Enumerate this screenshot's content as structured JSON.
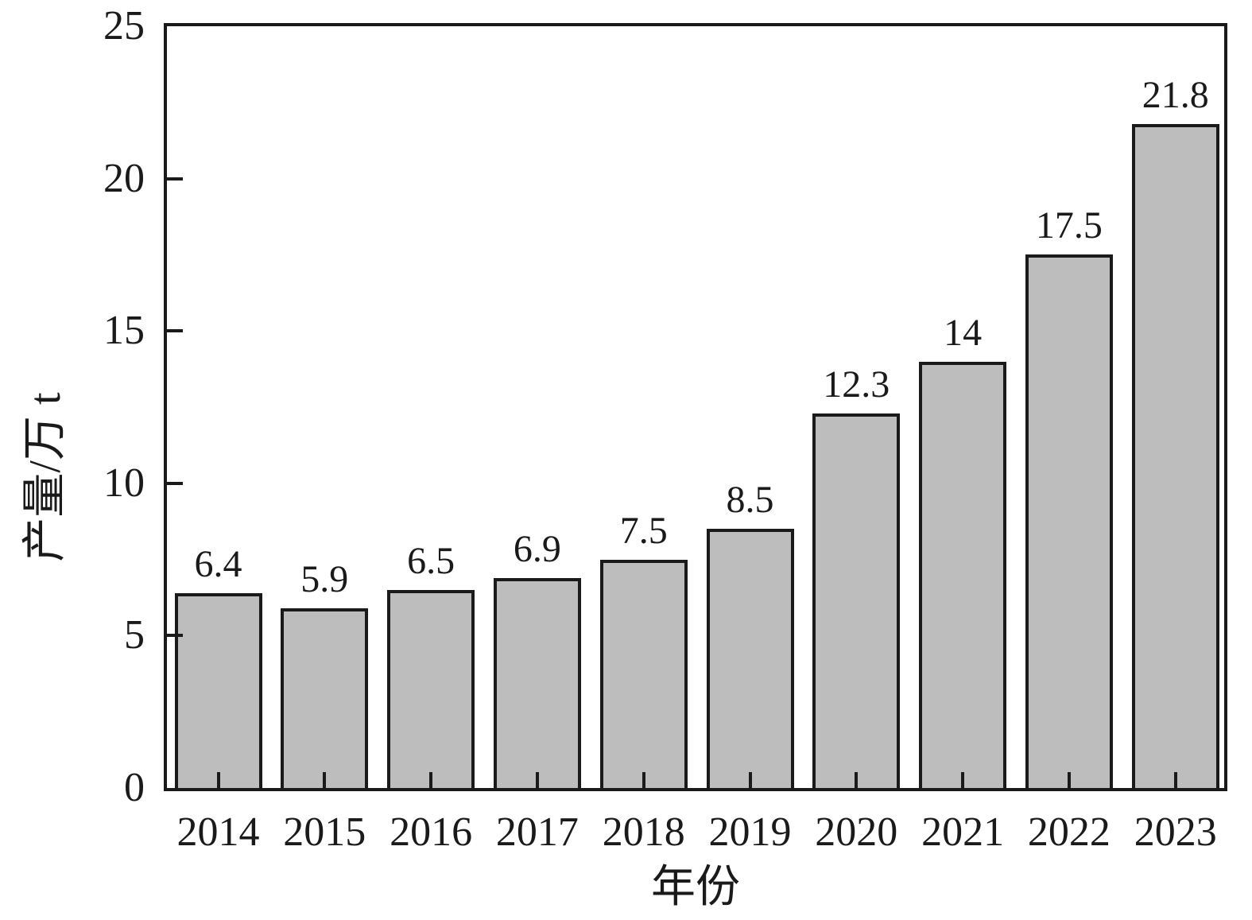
{
  "figure": {
    "background_color": "#ffffff",
    "bar_fill_color": "#bdbdbd",
    "line_color": "#1a1a1a"
  },
  "chart_data": {
    "type": "bar",
    "title": "",
    "xlabel": "年份",
    "ylabel": "产量/万 t",
    "categories": [
      "2014",
      "2015",
      "2016",
      "2017",
      "2018",
      "2019",
      "2020",
      "2021",
      "2022",
      "2023"
    ],
    "values": [
      6.4,
      5.9,
      6.5,
      6.9,
      7.5,
      8.5,
      12.3,
      14,
      17.5,
      21.8
    ],
    "bar_labels": [
      "6.4",
      "5.9",
      "6.5",
      "6.9",
      "7.5",
      "8.5",
      "12.3",
      "14",
      "17.5",
      "21.8"
    ],
    "ylim": [
      0,
      25
    ],
    "yticks": [
      0,
      5,
      10,
      15,
      20,
      25
    ],
    "ytick_labels": [
      "0",
      "5",
      "10",
      "15",
      "20",
      "25"
    ],
    "grid": false,
    "legend": "none",
    "bar_orientation": "vertical"
  }
}
